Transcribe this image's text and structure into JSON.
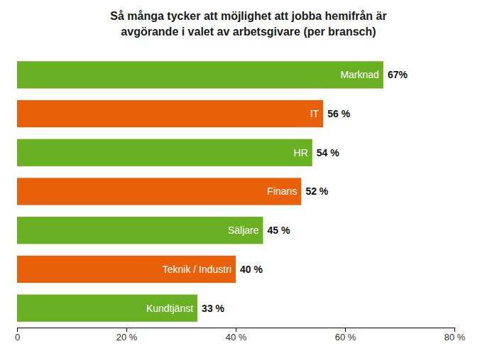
{
  "chart_data": {
    "type": "bar",
    "orientation": "horizontal",
    "title": "Så många tycker att möjlighet att jobba hemifrån är\navgörande i valet av arbetsgivare (per bransch)",
    "categories": [
      "Kundtjänst",
      "Teknik / Industri",
      "Säljare",
      "Finans",
      "HR",
      "IT",
      "Marknad"
    ],
    "values": [
      33,
      40,
      45,
      52,
      54,
      56,
      67
    ],
    "value_labels": [
      "33 %",
      "40 %",
      "45 %",
      "52 %",
      "54 %",
      "56 %",
      "67%"
    ],
    "colors": [
      "#6ab023",
      "#e8610a",
      "#6ab023",
      "#e8610a",
      "#6ab023",
      "#e8610a",
      "#6ab023"
    ],
    "xlim": [
      0,
      80
    ],
    "xticks": [
      0,
      {
        "value": 20,
        "label": "20 %"
      },
      {
        "value": 40,
        "label": "40 %"
      },
      {
        "value": 60,
        "label": "60 %"
      },
      {
        "value": 80,
        "label": "80 %"
      }
    ],
    "data_labels": true,
    "grid": false
  }
}
